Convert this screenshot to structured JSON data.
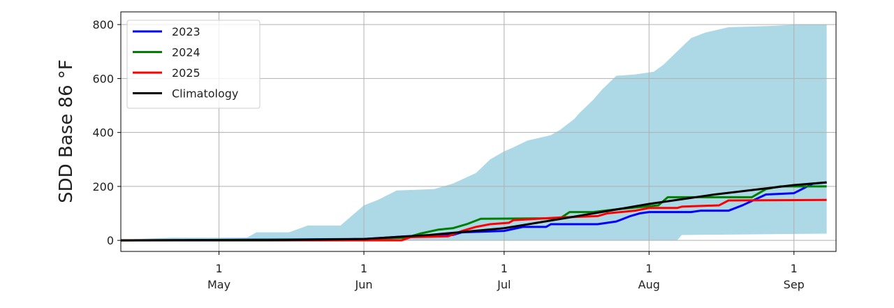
{
  "chart_data": {
    "type": "line",
    "title": "",
    "xlabel": "",
    "ylabel": "SDD Base 86 °F",
    "xlim": [
      "04-10",
      "09-10"
    ],
    "ylim": [
      -41,
      847
    ],
    "grid": true,
    "legend_position": "top-left",
    "yticks": [
      0,
      200,
      400,
      600,
      800
    ],
    "xticks": [
      {
        "date": "05-01",
        "day": "1",
        "month": "May"
      },
      {
        "date": "06-01",
        "day": "1",
        "month": "Jun"
      },
      {
        "date": "07-01",
        "day": "1",
        "month": "Jul"
      },
      {
        "date": "08-01",
        "day": "1",
        "month": "Aug"
      },
      {
        "date": "09-01",
        "day": "1",
        "month": "Sep"
      }
    ],
    "envelope": {
      "color": "#add8e6",
      "upper": [
        [
          "04-10",
          3
        ],
        [
          "04-21",
          10
        ],
        [
          "05-07",
          10
        ],
        [
          "05-09",
          30
        ],
        [
          "05-16",
          30
        ],
        [
          "05-20",
          55
        ],
        [
          "05-27",
          55
        ],
        [
          "05-30",
          100
        ],
        [
          "06-01",
          130
        ],
        [
          "06-04",
          150
        ],
        [
          "06-08",
          185
        ],
        [
          "06-16",
          190
        ],
        [
          "06-20",
          210
        ],
        [
          "06-25",
          250
        ],
        [
          "06-28",
          300
        ],
        [
          "07-01",
          330
        ],
        [
          "07-03",
          345
        ],
        [
          "07-06",
          370
        ],
        [
          "07-11",
          390
        ],
        [
          "07-13",
          410
        ],
        [
          "07-16",
          450
        ],
        [
          "07-17",
          470
        ],
        [
          "07-20",
          520
        ],
        [
          "07-22",
          560
        ],
        [
          "07-25",
          610
        ],
        [
          "07-29",
          615
        ],
        [
          "08-02",
          625
        ],
        [
          "08-04",
          650
        ],
        [
          "08-07",
          700
        ],
        [
          "08-10",
          750
        ],
        [
          "08-13",
          770
        ],
        [
          "08-18",
          790
        ],
        [
          "08-27",
          795
        ],
        [
          "09-02",
          800
        ],
        [
          "09-08",
          800
        ]
      ],
      "lower": [
        [
          "04-10",
          0
        ],
        [
          "08-07",
          0
        ],
        [
          "08-08",
          20
        ],
        [
          "09-08",
          25
        ]
      ]
    },
    "series": [
      {
        "name": "2023",
        "color": "#0000ff",
        "points": [
          [
            "04-10",
            0
          ],
          [
            "06-01",
            5
          ],
          [
            "06-10",
            15
          ],
          [
            "06-20",
            20
          ],
          [
            "06-22",
            30
          ],
          [
            "07-01",
            35
          ],
          [
            "07-05",
            50
          ],
          [
            "07-10",
            50
          ],
          [
            "07-11",
            60
          ],
          [
            "07-21",
            60
          ],
          [
            "07-25",
            70
          ],
          [
            "07-28",
            90
          ],
          [
            "07-30",
            100
          ],
          [
            "08-01",
            105
          ],
          [
            "08-10",
            105
          ],
          [
            "08-12",
            110
          ],
          [
            "08-18",
            110
          ],
          [
            "08-21",
            130
          ],
          [
            "08-26",
            170
          ],
          [
            "09-01",
            175
          ],
          [
            "09-05",
            210
          ],
          [
            "09-08",
            215
          ]
        ]
      },
      {
        "name": "2024",
        "color": "#008000",
        "points": [
          [
            "04-10",
            0
          ],
          [
            "05-20",
            3
          ],
          [
            "06-01",
            5
          ],
          [
            "06-10",
            10
          ],
          [
            "06-13",
            25
          ],
          [
            "06-17",
            40
          ],
          [
            "06-20",
            45
          ],
          [
            "06-23",
            60
          ],
          [
            "06-26",
            80
          ],
          [
            "07-13",
            82
          ],
          [
            "07-15",
            105
          ],
          [
            "07-20",
            105
          ],
          [
            "07-25",
            115
          ],
          [
            "07-31",
            125
          ],
          [
            "08-03",
            130
          ],
          [
            "08-05",
            160
          ],
          [
            "08-23",
            160
          ],
          [
            "08-26",
            190
          ],
          [
            "08-29",
            200
          ],
          [
            "09-08",
            200
          ]
        ]
      },
      {
        "name": "2025",
        "color": "#ff0000",
        "points": [
          [
            "04-10",
            0
          ],
          [
            "06-09",
            0
          ],
          [
            "06-11",
            12
          ],
          [
            "06-19",
            15
          ],
          [
            "06-22",
            35
          ],
          [
            "06-25",
            50
          ],
          [
            "06-28",
            60
          ],
          [
            "07-02",
            65
          ],
          [
            "07-03",
            75
          ],
          [
            "07-08",
            80
          ],
          [
            "07-13",
            85
          ],
          [
            "07-21",
            90
          ],
          [
            "07-23",
            100
          ],
          [
            "07-29",
            110
          ],
          [
            "08-01",
            120
          ],
          [
            "08-07",
            120
          ],
          [
            "08-08",
            125
          ],
          [
            "08-16",
            130
          ],
          [
            "08-18",
            148
          ],
          [
            "09-08",
            150
          ]
        ]
      },
      {
        "name": "Climatology",
        "color": "#000000",
        "points": [
          [
            "04-10",
            0
          ],
          [
            "05-15",
            1
          ],
          [
            "06-01",
            5
          ],
          [
            "06-15",
            20
          ],
          [
            "07-01",
            45
          ],
          [
            "07-15",
            85
          ],
          [
            "08-01",
            135
          ],
          [
            "08-15",
            170
          ],
          [
            "09-01",
            205
          ],
          [
            "09-08",
            215
          ]
        ]
      }
    ]
  }
}
